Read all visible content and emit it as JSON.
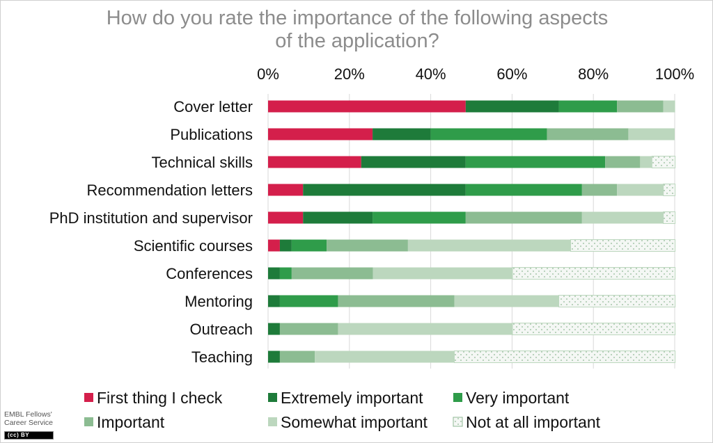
{
  "chart_data": {
    "type": "bar",
    "orientation": "horizontal",
    "stacked": "percent",
    "title": "How do you rate the importance of the following aspects of the application?",
    "title_lines": [
      "How do you rate the importance of the following aspects",
      "of the application?"
    ],
    "xlabel": "",
    "ylabel": "",
    "xlim": [
      0,
      100
    ],
    "x_ticks": [
      "0%",
      "20%",
      "40%",
      "60%",
      "80%",
      "100%"
    ],
    "x_axis_position": "top",
    "grid": true,
    "legend_position": "bottom",
    "categories": [
      "Cover letter",
      "Publications",
      "Technical skills",
      "Recommendation letters",
      "PhD institution and supervisor",
      "Scientific courses",
      "Conferences",
      "Mentoring",
      "Outreach",
      "Teaching"
    ],
    "series": [
      {
        "name": "First thing I check",
        "color": "#d41f4b",
        "pattern": "solid",
        "values": [
          48.6,
          25.7,
          22.9,
          8.6,
          8.6,
          2.9,
          0,
          0,
          0,
          0
        ]
      },
      {
        "name": "Extremely important",
        "color": "#1e7b3a",
        "pattern": "solid",
        "values": [
          22.9,
          14.3,
          25.7,
          40.0,
          17.1,
          2.9,
          2.9,
          2.9,
          2.9,
          2.9
        ]
      },
      {
        "name": "Very important",
        "color": "#2f9c4a",
        "pattern": "solid",
        "values": [
          14.3,
          28.6,
          34.3,
          28.6,
          22.9,
          8.6,
          2.9,
          14.3,
          0,
          0
        ]
      },
      {
        "name": "Important",
        "color": "#8cbc92",
        "pattern": "solid",
        "values": [
          11.4,
          20.0,
          8.6,
          8.6,
          28.6,
          20.0,
          20.0,
          28.6,
          14.3,
          8.6
        ]
      },
      {
        "name": "Somewhat important",
        "color": "#bcd7be",
        "pattern": "solid",
        "values": [
          2.9,
          11.4,
          2.9,
          11.4,
          20.0,
          40.0,
          34.3,
          25.7,
          42.9,
          34.3
        ]
      },
      {
        "name": "Not at all important",
        "color": "#f4f7f4",
        "pattern": "dotted",
        "values": [
          0,
          0,
          5.7,
          2.9,
          2.9,
          25.7,
          40.0,
          28.6,
          40.0,
          54.3
        ]
      }
    ]
  },
  "credit": {
    "line1": "EMBL Fellows'",
    "line2": "Career Service",
    "license_badge": "(cc) BY"
  }
}
